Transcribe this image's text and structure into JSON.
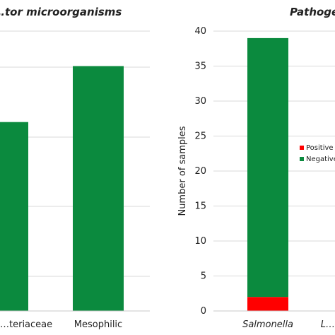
{
  "chart_data": [
    {
      "type": "bar",
      "title": "…tor microorganisms",
      "categories": [
        "…teriaceae",
        "Mesophilic"
      ],
      "values": [
        27,
        35
      ],
      "bar_color": "#0b8a3e",
      "grid": true
    },
    {
      "type": "bar",
      "stacked": true,
      "title": "Pathoge…",
      "ylabel": "Number of samples",
      "categories": [
        "Salmonella",
        "L…"
      ],
      "ylim": [
        0,
        40
      ],
      "yticks": [
        0,
        5,
        10,
        15,
        20,
        25,
        30,
        35,
        40
      ],
      "series": [
        {
          "name": "Positive",
          "color": "#ff0000",
          "values": [
            2,
            null
          ]
        },
        {
          "name": "Negative",
          "color": "#0b8a3e",
          "values": [
            37,
            null
          ]
        }
      ],
      "legend": "right",
      "grid": true
    }
  ]
}
